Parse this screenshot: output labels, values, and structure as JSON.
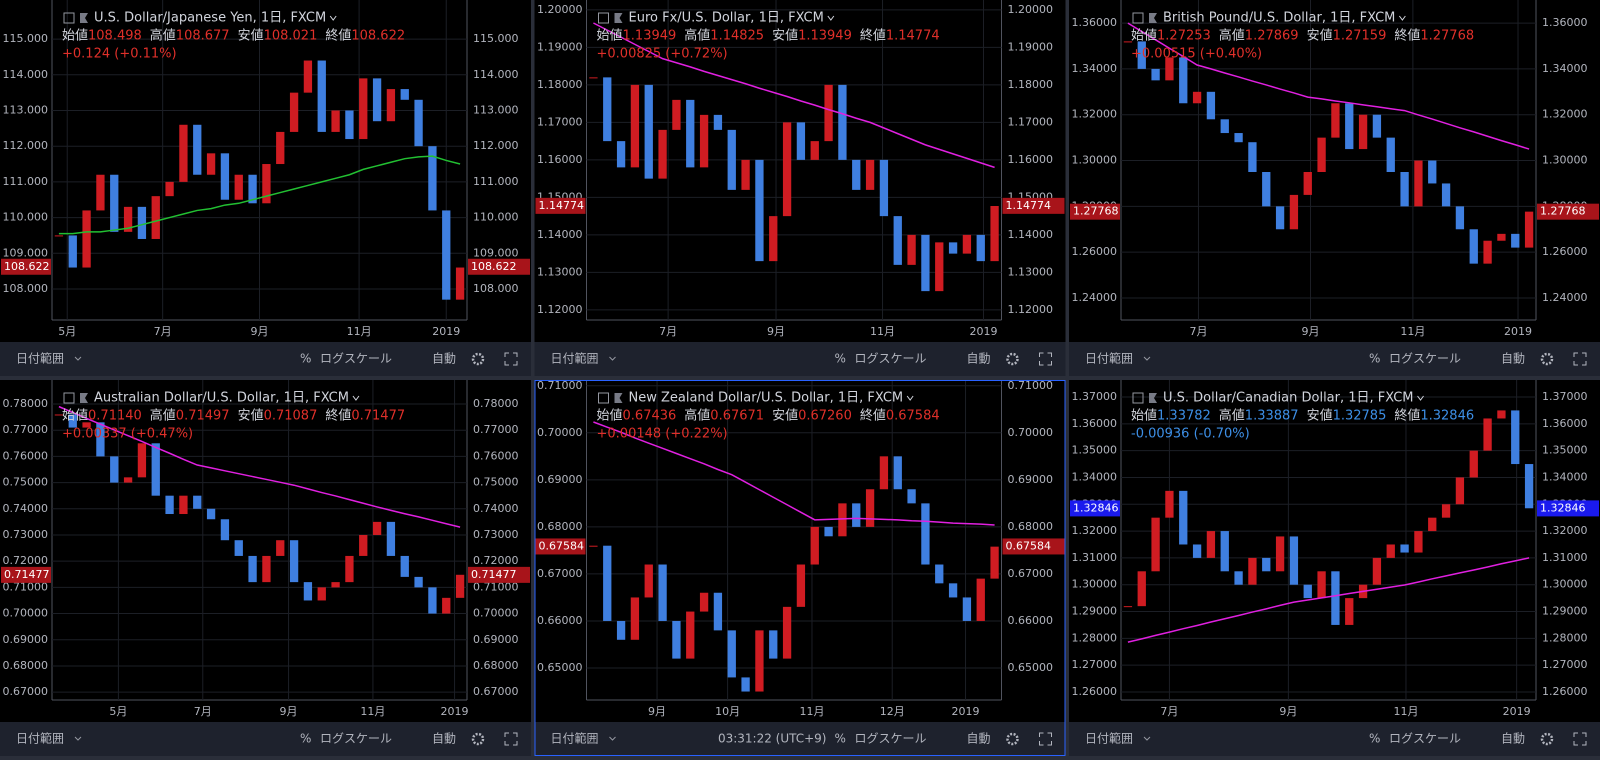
{
  "ohlc_labels": [
    "始値",
    "高値",
    "安値",
    "終値"
  ],
  "toolbar": {
    "date_range": "日付範囲",
    "percent": "%",
    "log": "ログスケール",
    "auto": "自動"
  },
  "clock": "03:31:22 (UTC+9)",
  "active_panel": 4,
  "chart_data": [
    {
      "type": "candlestick",
      "title": "U.S. Dollar/Japanese Yen, 1日, FXCM",
      "ohlc": [
        "108.498",
        "108.677",
        "108.021",
        "108.622"
      ],
      "change": "+0.124 (+0.11%)",
      "last": 108.622,
      "value_color": "#e0302a",
      "last_bg": "#a8141a",
      "up_color": "#d01c22",
      "down_color": "#3f7fe0",
      "ma_color": "#22c032",
      "ylim": [
        107.13,
        116.04
      ],
      "yticks": [
        {
          "value": 108,
          "label": "108.000"
        },
        {
          "value": 109,
          "label": "109.000"
        },
        {
          "value": 110,
          "label": "110.000"
        },
        {
          "value": 111,
          "label": "111.000"
        },
        {
          "value": 112,
          "label": "112.000"
        },
        {
          "value": 113,
          "label": "113.000"
        },
        {
          "value": 114,
          "label": "114.000"
        },
        {
          "value": 115,
          "label": "115.000"
        }
      ],
      "xticks": [
        {
          "value": 0.6,
          "label": "5月"
        },
        {
          "value": 7.5,
          "label": "7月"
        },
        {
          "value": 14.5,
          "label": "9月"
        },
        {
          "value": 21.7,
          "label": "11月"
        },
        {
          "value": 28,
          "label": "2019"
        }
      ],
      "values": [
        109.5,
        108.6,
        110.2,
        111.2,
        109.6,
        110.3,
        109.4,
        110.6,
        111.0,
        112.6,
        111.2,
        111.8,
        110.5,
        111.2,
        110.4,
        111.5,
        112.4,
        113.5,
        114.4,
        112.4,
        113.0,
        112.2,
        113.9,
        112.7,
        113.6,
        113.3,
        112.0,
        110.2,
        107.7,
        108.6
      ],
      "ma": [
        109.55,
        109.55,
        109.6,
        109.6,
        109.65,
        109.7,
        109.8,
        109.9,
        110.0,
        110.1,
        110.2,
        110.25,
        110.35,
        110.4,
        110.5,
        110.6,
        110.7,
        110.8,
        110.9,
        111.0,
        111.1,
        111.2,
        111.35,
        111.45,
        111.55,
        111.65,
        111.7,
        111.72,
        111.6,
        111.5
      ]
    },
    {
      "type": "candlestick",
      "title": "Euro Fx/U.S. Dollar, 1日, FXCM",
      "ohlc": [
        "1.13949",
        "1.14825",
        "1.13949",
        "1.14774"
      ],
      "change": "+0.00825 (+0.72%)",
      "last": 1.14774,
      "value_color": "#e0302a",
      "last_bg": "#a8141a",
      "up_color": "#d01c22",
      "down_color": "#3f7fe0",
      "ma_color": "#e020e0",
      "ylim": [
        1.1173,
        1.2021
      ],
      "yticks": [
        {
          "value": 1.12,
          "label": "1.12000"
        },
        {
          "value": 1.13,
          "label": "1.13000"
        },
        {
          "value": 1.14,
          "label": "1.14000"
        },
        {
          "value": 1.15,
          "label": "1.15000"
        },
        {
          "value": 1.16,
          "label": "1.16000"
        },
        {
          "value": 1.17,
          "label": "1.17000"
        },
        {
          "value": 1.18,
          "label": "1.18000"
        },
        {
          "value": 1.19,
          "label": "1.19000"
        },
        {
          "value": 1.2,
          "label": "1.20000"
        }
      ],
      "xticks": [
        {
          "value": 5.4,
          "label": "7月"
        },
        {
          "value": 13.2,
          "label": "9月"
        },
        {
          "value": 20.9,
          "label": "11月"
        },
        {
          "value": 28.2,
          "label": "2019"
        }
      ],
      "values": [
        1.182,
        1.165,
        1.158,
        1.18,
        1.155,
        1.168,
        1.176,
        1.158,
        1.172,
        1.168,
        1.152,
        1.16,
        1.133,
        1.145,
        1.17,
        1.16,
        1.165,
        1.18,
        1.16,
        1.152,
        1.16,
        1.145,
        1.132,
        1.14,
        1.125,
        1.138,
        1.135,
        1.14,
        1.133,
        1.1477
      ],
      "ma": [
        1.1965,
        1.1946,
        1.1927,
        1.1908,
        1.1889,
        1.187,
        1.1859,
        1.1848,
        1.1836,
        1.1825,
        1.1814,
        1.1803,
        1.1791,
        1.178,
        1.1769,
        1.1757,
        1.1746,
        1.1734,
        1.1723,
        1.1711,
        1.17,
        1.1685,
        1.167,
        1.1655,
        1.164,
        1.1628,
        1.1616,
        1.1604,
        1.1592,
        1.158
      ]
    },
    {
      "type": "candlestick",
      "title": "British Pound/U.S. Dollar, 1日, FXCM",
      "ohlc": [
        "1.27253",
        "1.27869",
        "1.27159",
        "1.27768"
      ],
      "change": "+0.00515 (+0.40%)",
      "last": 1.27768,
      "value_color": "#e0302a",
      "last_bg": "#a8141a",
      "up_color": "#d01c22",
      "down_color": "#3f7fe0",
      "ma_color": "#e020e0",
      "ylim": [
        1.2304,
        1.3692
      ],
      "yticks": [
        {
          "value": 1.24,
          "label": "1.24000"
        },
        {
          "value": 1.26,
          "label": "1.26000"
        },
        {
          "value": 1.28,
          "label": "1.28000"
        },
        {
          "value": 1.3,
          "label": "1.30000"
        },
        {
          "value": 1.32,
          "label": "1.32000"
        },
        {
          "value": 1.34,
          "label": "1.34000"
        },
        {
          "value": 1.36,
          "label": "1.36000"
        }
      ],
      "xticks": [
        {
          "value": 5.1,
          "label": "7月"
        },
        {
          "value": 13.2,
          "label": "9月"
        },
        {
          "value": 20.6,
          "label": "11月"
        },
        {
          "value": 28.2,
          "label": "2019"
        }
      ],
      "values": [
        1.352,
        1.34,
        1.335,
        1.345,
        1.325,
        1.33,
        1.318,
        1.312,
        1.308,
        1.295,
        1.28,
        1.27,
        1.285,
        1.295,
        1.31,
        1.325,
        1.305,
        1.32,
        1.31,
        1.295,
        1.28,
        1.3,
        1.29,
        1.28,
        1.27,
        1.255,
        1.265,
        1.268,
        1.262,
        1.2777
      ],
      "ma": [
        1.36,
        1.3563,
        1.3527,
        1.349,
        1.3454,
        1.3417,
        1.34,
        1.3382,
        1.3365,
        1.3347,
        1.333,
        1.3312,
        1.3295,
        1.3277,
        1.3269,
        1.326,
        1.3252,
        1.3243,
        1.3235,
        1.3226,
        1.3218,
        1.3199,
        1.3181,
        1.3162,
        1.3143,
        1.3125,
        1.3106,
        1.3087,
        1.3069,
        1.305
      ]
    },
    {
      "type": "candlestick",
      "title": "Australian Dollar/U.S. Dollar, 1日, FXCM",
      "ohlc": [
        "0.71140",
        "0.71497",
        "0.71087",
        "0.71477"
      ],
      "change": "+0.00337 (+0.47%)",
      "last": 0.71477,
      "value_color": "#e0302a",
      "last_bg": "#a8141a",
      "up_color": "#d01c22",
      "down_color": "#3f7fe0",
      "ma_color": "#e020e0",
      "ylim": [
        0.667,
        0.7884
      ],
      "yticks": [
        {
          "value": 0.67,
          "label": "0.67000"
        },
        {
          "value": 0.68,
          "label": "0.68000"
        },
        {
          "value": 0.69,
          "label": "0.69000"
        },
        {
          "value": 0.7,
          "label": "0.70000"
        },
        {
          "value": 0.71,
          "label": "0.71000"
        },
        {
          "value": 0.72,
          "label": "0.72000"
        },
        {
          "value": 0.73,
          "label": "0.73000"
        },
        {
          "value": 0.74,
          "label": "0.74000"
        },
        {
          "value": 0.75,
          "label": "0.75000"
        },
        {
          "value": 0.76,
          "label": "0.76000"
        },
        {
          "value": 0.77,
          "label": "0.77000"
        },
        {
          "value": 0.78,
          "label": "0.78000"
        }
      ],
      "xticks": [
        {
          "value": 4.3,
          "label": "5月"
        },
        {
          "value": 10.4,
          "label": "7月"
        },
        {
          "value": 16.6,
          "label": "9月"
        },
        {
          "value": 22.7,
          "label": "11月"
        },
        {
          "value": 28.6,
          "label": "2019"
        }
      ],
      "values": [
        0.776,
        0.771,
        0.773,
        0.76,
        0.75,
        0.752,
        0.765,
        0.745,
        0.738,
        0.745,
        0.74,
        0.736,
        0.728,
        0.722,
        0.712,
        0.722,
        0.728,
        0.712,
        0.705,
        0.71,
        0.712,
        0.722,
        0.73,
        0.735,
        0.722,
        0.714,
        0.71,
        0.7,
        0.706,
        0.7148
      ],
      "ma": [
        0.779,
        0.7768,
        0.7745,
        0.7723,
        0.7701,
        0.7679,
        0.7657,
        0.7634,
        0.7612,
        0.7589,
        0.7567,
        0.7556,
        0.7545,
        0.7534,
        0.7523,
        0.7512,
        0.7501,
        0.749,
        0.7476,
        0.7462,
        0.7449,
        0.7435,
        0.7421,
        0.7407,
        0.7394,
        0.7381,
        0.7369,
        0.7356,
        0.7343,
        0.733
      ]
    },
    {
      "type": "candlestick",
      "title": "New Zealand Dollar/U.S. Dollar, 1日, FXCM",
      "ohlc": [
        "0.67436",
        "0.67671",
        "0.67260",
        "0.67584"
      ],
      "change": "+0.00148 (+0.22%)",
      "last": 0.67584,
      "value_color": "#e0302a",
      "last_bg": "#a8141a",
      "up_color": "#d01c22",
      "down_color": "#3f7fe0",
      "ma_color": "#e020e0",
      "ylim": [
        0.6432,
        0.7108
      ],
      "yticks": [
        {
          "value": 0.65,
          "label": "0.65000"
        },
        {
          "value": 0.66,
          "label": "0.66000"
        },
        {
          "value": 0.67,
          "label": "0.67000"
        },
        {
          "value": 0.68,
          "label": "0.68000"
        },
        {
          "value": 0.69,
          "label": "0.69000"
        },
        {
          "value": 0.7,
          "label": "0.70000"
        },
        {
          "value": 0.71,
          "label": "0.71000"
        }
      ],
      "xticks": [
        {
          "value": 4.6,
          "label": "9月"
        },
        {
          "value": 9.7,
          "label": "10月"
        },
        {
          "value": 15.8,
          "label": "11月"
        },
        {
          "value": 21.6,
          "label": "12月"
        },
        {
          "value": 26.9,
          "label": "2019"
        }
      ],
      "values": [
        0.676,
        0.66,
        0.656,
        0.665,
        0.672,
        0.66,
        0.652,
        0.662,
        0.666,
        0.658,
        0.648,
        0.645,
        0.658,
        0.652,
        0.663,
        0.672,
        0.68,
        0.678,
        0.685,
        0.68,
        0.688,
        0.695,
        0.688,
        0.685,
        0.672,
        0.668,
        0.665,
        0.66,
        0.669,
        0.6758
      ],
      "ma": [
        0.7023,
        0.7012,
        0.7001,
        0.6989,
        0.6978,
        0.6967,
        0.6956,
        0.6945,
        0.6934,
        0.6922,
        0.6911,
        0.6895,
        0.6879,
        0.6863,
        0.6847,
        0.6831,
        0.6815,
        0.6816,
        0.6817,
        0.6818,
        0.6817,
        0.6816,
        0.6815,
        0.6813,
        0.6812,
        0.681,
        0.6808,
        0.6807,
        0.6806,
        0.6804
      ]
    },
    {
      "type": "candlestick",
      "title": "U.S. Dollar/Canadian Dollar, 1日, FXCM",
      "ohlc": [
        "1.33782",
        "1.33887",
        "1.32785",
        "1.32846"
      ],
      "change": "-0.00936 (-0.70%)",
      "last": 1.32846,
      "value_color": "#3d8fe6",
      "last_bg": "#1a1aee",
      "up_color": "#d01c22",
      "down_color": "#3f7fe0",
      "ma_color": "#e020e0",
      "ylim": [
        1.257,
        1.3756
      ],
      "yticks": [
        {
          "value": 1.26,
          "label": "1.26000"
        },
        {
          "value": 1.27,
          "label": "1.27000"
        },
        {
          "value": 1.28,
          "label": "1.28000"
        },
        {
          "value": 1.29,
          "label": "1.29000"
        },
        {
          "value": 1.3,
          "label": "1.30000"
        },
        {
          "value": 1.31,
          "label": "1.31000"
        },
        {
          "value": 1.32,
          "label": "1.32000"
        },
        {
          "value": 1.33,
          "label": "1.33000"
        },
        {
          "value": 1.34,
          "label": "1.34000"
        },
        {
          "value": 1.35,
          "label": "1.35000"
        },
        {
          "value": 1.36,
          "label": "1.36000"
        },
        {
          "value": 1.37,
          "label": "1.37000"
        }
      ],
      "xticks": [
        {
          "value": 3,
          "label": "7月"
        },
        {
          "value": 11.6,
          "label": "9月"
        },
        {
          "value": 20.1,
          "label": "11月"
        },
        {
          "value": 28.1,
          "label": "2019"
        }
      ],
      "values": [
        1.292,
        1.305,
        1.325,
        1.335,
        1.315,
        1.31,
        1.32,
        1.305,
        1.3,
        1.31,
        1.305,
        1.318,
        1.3,
        1.295,
        1.305,
        1.285,
        1.295,
        1.3,
        1.31,
        1.315,
        1.312,
        1.32,
        1.325,
        1.33,
        1.34,
        1.35,
        1.362,
        1.365,
        1.345,
        1.3285
      ],
      "ma": [
        1.2786,
        1.2798,
        1.2811,
        1.2823,
        1.2836,
        1.2848,
        1.2861,
        1.2873,
        1.2885,
        1.2898,
        1.291,
        1.2923,
        1.2935,
        1.2943,
        1.2951,
        1.2959,
        1.2967,
        1.2975,
        1.2983,
        1.2991,
        1.2999,
        1.301,
        1.3022,
        1.3033,
        1.3044,
        1.3055,
        1.3066,
        1.3078,
        1.3089,
        1.31
      ]
    }
  ]
}
